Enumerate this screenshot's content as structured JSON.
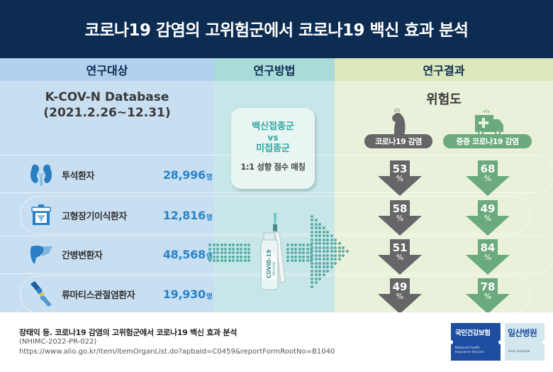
{
  "title": "코로나19 감염의 고위험군에서 코로나19 백신 효과 분석",
  "columns": {
    "subjects": {
      "header": "연구대상",
      "database_name": "K-COV-N Database",
      "database_period": "(2021.2.26~12.31)",
      "unit": "명",
      "rows": [
        {
          "icon": "kidney-icon",
          "label": "투석환자",
          "count": "28,996"
        },
        {
          "icon": "organ-transplant-box-icon",
          "label": "고형장기이식환자",
          "count": "12,816"
        },
        {
          "icon": "liver-icon",
          "label": "간병변환자",
          "count": "48,568"
        },
        {
          "icon": "joint-icon",
          "label": "류마티스관절염환자",
          "count": "19,930"
        }
      ]
    },
    "method": {
      "header": "연구방법",
      "group_a": "백신접종군",
      "vs": "vs",
      "group_b": "미접종군",
      "matching": "1:1 성향 점수 매칭",
      "illustration": "covid-19-vaccine-vial-icon",
      "vial_text": "COVID-19 VACCINE"
    },
    "results": {
      "header": "연구결과",
      "risk_title": "위험도",
      "categories": [
        {
          "icon": "sick-person-icon",
          "label": "코로나19 감염",
          "color": "#666668"
        },
        {
          "icon": "ambulance-icon",
          "label": "중증 코로나19 감염",
          "color": "#6aaa7c"
        }
      ],
      "pct_symbol": "%",
      "rows": [
        {
          "infection": "53",
          "severe": "68"
        },
        {
          "infection": "58",
          "severe": "49"
        },
        {
          "infection": "51",
          "severe": "84"
        },
        {
          "infection": "49",
          "severe": "78"
        }
      ]
    }
  },
  "chart_data": {
    "type": "table",
    "title": "코로나19 감염의 고위험군에서 코로나19 백신 효과 분석",
    "categories": [
      "투석환자",
      "고형장기이식환자",
      "간병변환자",
      "류마티스관절염환자"
    ],
    "patients": [
      28996,
      12816,
      48568,
      19930
    ],
    "series": [
      {
        "name": "코로나19 감염 위험도 감소 (%)",
        "values": [
          53,
          58,
          51,
          49
        ]
      },
      {
        "name": "중증 코로나19 감염 위험도 감소 (%)",
        "values": [
          68,
          49,
          84,
          78
        ]
      }
    ]
  },
  "footer": {
    "citation_title": "장태익 등. 코로나19 감염의 고위험군에서 코로나19 백신 효과 분석",
    "citation_code": "(NHIMC-2022-PR-022)",
    "citation_url": "https://www.alio.go.kr/item/itemOrganList.do?apbaId=C0459&reportFormRootNo=B1040"
  },
  "logos": {
    "nhis_ko": "국민건강보험",
    "nhis_en_1": "National Health",
    "nhis_en_2": "Insurance Service",
    "ilsan_ko": "일산병원",
    "ilsan_en": "Ilsan Hospital"
  },
  "colors": {
    "title_bg": "#0d2c52",
    "count_blue": "#2a83c6",
    "arrow_gray": "#666668",
    "arrow_green": "#6aaa7c",
    "method_teal": "#2ba8a0"
  }
}
